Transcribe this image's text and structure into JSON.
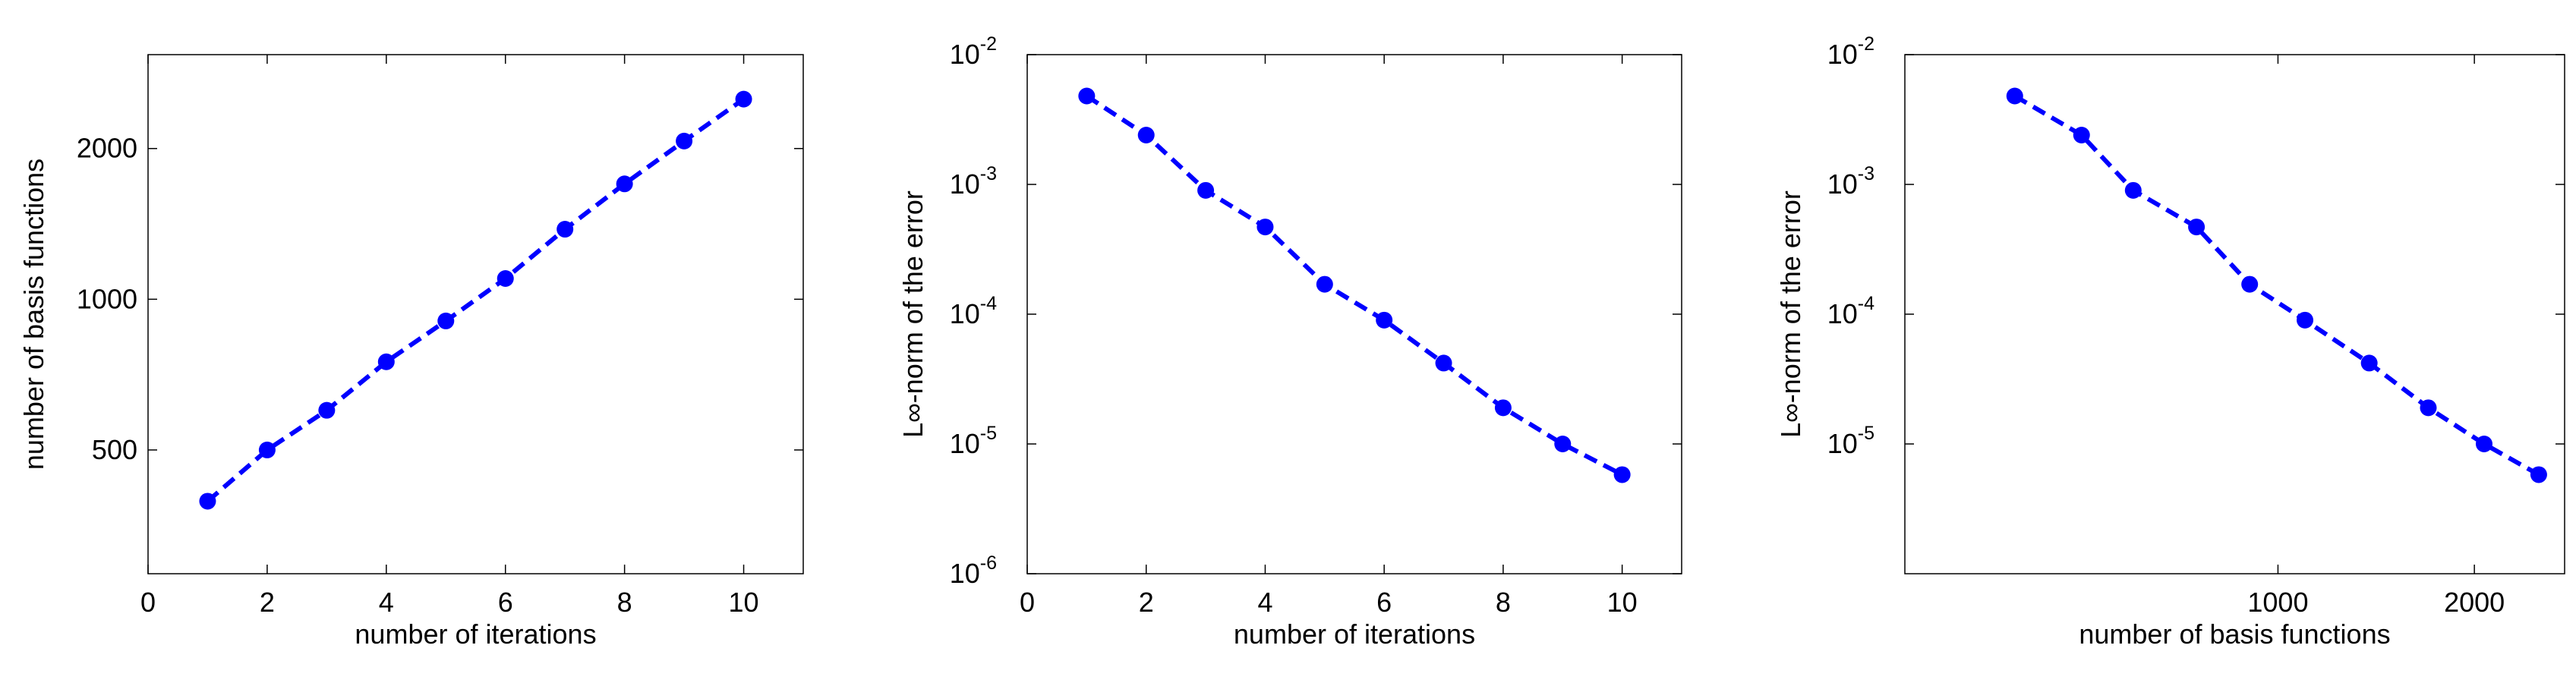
{
  "chart_data": [
    {
      "type": "line",
      "xlabel": "number of iterations",
      "ylabel": "number of basis functions",
      "x": [
        1,
        2,
        3,
        4,
        5,
        6,
        7,
        8,
        9,
        10
      ],
      "series": [
        {
          "color": "#0000ff",
          "values": [
            395,
            500,
            600,
            750,
            905,
            1100,
            1380,
            1700,
            2070,
            2510
          ]
        }
      ],
      "xlim": [
        0,
        11
      ],
      "xticks": [
        0,
        2,
        4,
        6,
        8,
        10
      ],
      "xlog": false,
      "ylim": [
        283,
        3080
      ],
      "yticks": [
        500,
        1000,
        2000
      ],
      "ylog": true
    },
    {
      "type": "line",
      "xlabel": "number of iterations",
      "ylabel": "L∞-norm of the error",
      "x": [
        1,
        2,
        3,
        4,
        5,
        6,
        7,
        8,
        9,
        10
      ],
      "series": [
        {
          "color": "#0000ff",
          "values": [
            0.0048,
            0.0024,
            0.0009,
            0.00047,
            0.00017,
            9e-05,
            4.2e-05,
            1.9e-05,
            1e-05,
            5.8e-06
          ]
        }
      ],
      "xlim": [
        0,
        11
      ],
      "xticks": [
        0,
        2,
        4,
        6,
        8,
        10
      ],
      "xlog": false,
      "ylim": [
        1e-06,
        0.01
      ],
      "yticks": [
        {
          "value": 1e-06,
          "label": "10",
          "sup": "-6"
        },
        {
          "value": 1e-05,
          "label": "10",
          "sup": "-5"
        },
        {
          "value": 0.0001,
          "label": "10",
          "sup": "-4"
        },
        {
          "value": 0.001,
          "label": "10",
          "sup": "-3"
        },
        {
          "value": 0.01,
          "label": "10",
          "sup": "-2"
        }
      ],
      "ylog": true
    },
    {
      "type": "line",
      "xlabel": "number of basis functions",
      "ylabel": "L∞-norm of the error",
      "x": [
        395,
        500,
        600,
        750,
        905,
        1100,
        1380,
        1700,
        2070,
        2510
      ],
      "series": [
        {
          "color": "#0000ff",
          "values": [
            0.0048,
            0.0024,
            0.0009,
            0.00047,
            0.00017,
            9e-05,
            4.2e-05,
            1.9e-05,
            1e-05,
            5.8e-06
          ]
        }
      ],
      "xlim": [
        268,
        2750
      ],
      "xticks": [
        1000,
        2000
      ],
      "xlog": true,
      "ylim": [
        1e-06,
        0.01
      ],
      "yticks": [
        {
          "value": 1e-05,
          "label": "10",
          "sup": "-5"
        },
        {
          "value": 0.0001,
          "label": "10",
          "sup": "-4"
        },
        {
          "value": 0.001,
          "label": "10",
          "sup": "-3"
        },
        {
          "value": 0.01,
          "label": "10",
          "sup": "-2"
        }
      ],
      "ylog": true
    }
  ]
}
